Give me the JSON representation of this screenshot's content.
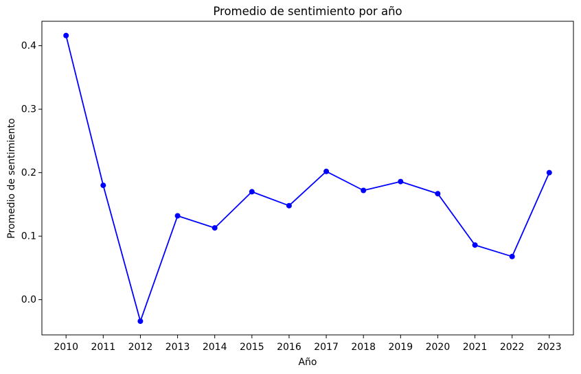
{
  "figure": {
    "background": "#ffffff",
    "title": "Promedio de sentimiento por año",
    "xlabel": "Año",
    "ylabel": "Promedio de sentimiento"
  },
  "chart_data": {
    "type": "line",
    "title": "Promedio de sentimiento por año",
    "xlabel": "Año",
    "ylabel": "Promedio de sentimiento",
    "x": [
      2010,
      2011,
      2012,
      2013,
      2014,
      2015,
      2016,
      2017,
      2018,
      2019,
      2020,
      2021,
      2022,
      2023
    ],
    "y": [
      0.416,
      0.18,
      -0.034,
      0.132,
      0.113,
      0.17,
      0.148,
      0.202,
      0.172,
      0.186,
      0.167,
      0.086,
      0.068,
      0.2
    ],
    "x_tick_labels": [
      "2010",
      "2011",
      "2012",
      "2013",
      "2014",
      "2015",
      "2016",
      "2017",
      "2018",
      "2019",
      "2020",
      "2021",
      "2022",
      "2023"
    ],
    "y_ticks": [
      0.0,
      0.1,
      0.2,
      0.3,
      0.4
    ],
    "y_tick_labels": [
      "0.0",
      "0.1",
      "0.2",
      "0.3",
      "0.4"
    ],
    "xlim": [
      2009.35,
      2023.65
    ],
    "ylim": [
      -0.0555,
      0.4385
    ],
    "grid": false,
    "legend": null,
    "line_color": "#0000ff",
    "marker": "circle",
    "marker_color": "#0000ff",
    "axis_color": "#000000",
    "text_color": "#000000"
  }
}
